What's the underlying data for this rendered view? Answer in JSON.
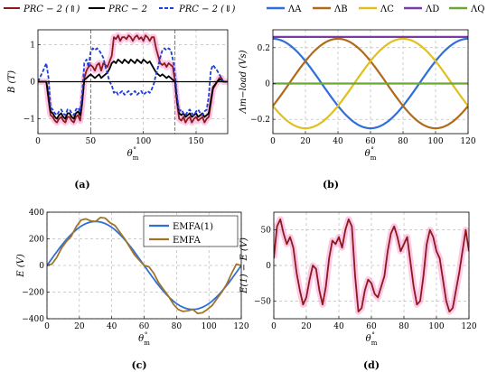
{
  "chart_data": [
    {
      "panel": "(a)",
      "type": "line",
      "xlabel": "θ°m",
      "ylabel": "B (T)",
      "xlim": [
        0,
        180
      ],
      "ylim": [
        -1.4,
        1.4
      ],
      "xticks": [
        0,
        50,
        100,
        150
      ],
      "yticks": [
        -1,
        0,
        1
      ],
      "vlines": [
        50,
        130
      ],
      "grid": "dashed",
      "legend": "top, outside",
      "colors": {
        "up": "#8b1a1a",
        "mid": "#000000",
        "down": "#1f3fd6",
        "fill": "#ff9ad5"
      },
      "series": [
        {
          "name": "PRC − 2 (⇑)",
          "style": "solid",
          "color": "#8b1a1a",
          "x": [
            0,
            5,
            8,
            10,
            12,
            14,
            16,
            18,
            20,
            22,
            24,
            26,
            28,
            30,
            32,
            34,
            36,
            38,
            40,
            42,
            44,
            46,
            48,
            50,
            52,
            54,
            56,
            58,
            60,
            62,
            64,
            66,
            68,
            70,
            72,
            74,
            76,
            78,
            80,
            82,
            84,
            86,
            88,
            90,
            92,
            94,
            96,
            98,
            100,
            102,
            104,
            106,
            108,
            110,
            112,
            114,
            116,
            118,
            120,
            122,
            124,
            126,
            128,
            130,
            132,
            134,
            136,
            138,
            140,
            142,
            144,
            146,
            148,
            150,
            152,
            154,
            156,
            158,
            160,
            162,
            164,
            166,
            170,
            172,
            174,
            176,
            180
          ],
          "y": [
            0,
            0,
            0,
            -0.5,
            -0.9,
            -0.95,
            -1.05,
            -1.1,
            -1.0,
            -0.95,
            -1.05,
            -1.1,
            -0.95,
            -0.95,
            -1.05,
            -1.1,
            -0.95,
            -0.9,
            -1.05,
            -0.6,
            0.1,
            0.3,
            0.4,
            0.45,
            0.4,
            0.3,
            0.45,
            0.5,
            0.3,
            0.5,
            0.45,
            0.4,
            0.55,
            0.7,
            1.2,
            1.15,
            1.25,
            1.1,
            1.2,
            1.2,
            1.15,
            1.25,
            1.2,
            1.1,
            1.2,
            1.25,
            1.15,
            1.2,
            1.1,
            1.25,
            1.2,
            1.1,
            1.2,
            1.2,
            0.9,
            0.7,
            0.5,
            0.45,
            0.5,
            0.4,
            0.5,
            0.45,
            0.4,
            0,
            -0.6,
            -1.0,
            -1.05,
            -0.95,
            -1.1,
            -1.0,
            -0.95,
            -1.1,
            -1.0,
            -0.95,
            -1.05,
            -1.0,
            -0.95,
            -1.1,
            -1.0,
            -0.95,
            -0.6,
            -0.2,
            0,
            0.1,
            0.1,
            0,
            0
          ]
        },
        {
          "name": "PRC − 2",
          "style": "solid",
          "color": "#000000",
          "x": [
            0,
            5,
            8,
            10,
            12,
            14,
            16,
            18,
            20,
            22,
            24,
            26,
            28,
            30,
            32,
            34,
            36,
            38,
            40,
            42,
            44,
            46,
            48,
            50,
            52,
            54,
            56,
            58,
            60,
            62,
            64,
            66,
            68,
            70,
            72,
            74,
            76,
            78,
            80,
            82,
            84,
            86,
            88,
            90,
            92,
            94,
            96,
            98,
            100,
            102,
            104,
            106,
            108,
            110,
            112,
            114,
            116,
            118,
            120,
            122,
            124,
            126,
            128,
            130,
            132,
            134,
            136,
            138,
            140,
            142,
            144,
            146,
            148,
            150,
            152,
            154,
            156,
            158,
            160,
            162,
            164,
            166,
            170,
            172,
            174,
            176,
            180
          ],
          "y": [
            0,
            0,
            0,
            -0.4,
            -0.8,
            -0.85,
            -0.95,
            -1.0,
            -0.9,
            -0.85,
            -0.95,
            -1.0,
            -0.85,
            -0.85,
            -0.95,
            -1.0,
            -0.85,
            -0.8,
            -0.9,
            -0.5,
            0.05,
            0.1,
            0.15,
            0.2,
            0.15,
            0.1,
            0.15,
            0.2,
            0.1,
            0.15,
            0.2,
            0.25,
            0.35,
            0.5,
            0.55,
            0.5,
            0.6,
            0.55,
            0.5,
            0.6,
            0.55,
            0.5,
            0.6,
            0.55,
            0.5,
            0.6,
            0.55,
            0.5,
            0.6,
            0.55,
            0.5,
            0.55,
            0.45,
            0.35,
            0.25,
            0.2,
            0.15,
            0.2,
            0.15,
            0.1,
            0.15,
            0.1,
            0.05,
            0,
            -0.5,
            -0.85,
            -0.9,
            -0.85,
            -0.95,
            -0.9,
            -0.85,
            -0.95,
            -0.9,
            -0.85,
            -0.95,
            -0.9,
            -0.85,
            -0.95,
            -0.9,
            -0.85,
            -0.5,
            -0.15,
            0,
            0.05,
            0.05,
            0,
            0
          ]
        },
        {
          "name": "PRC − 2 (⇓)",
          "style": "dashed",
          "color": "#1f3fd6",
          "x": [
            0,
            5,
            8,
            10,
            12,
            14,
            16,
            18,
            20,
            22,
            24,
            26,
            28,
            30,
            32,
            34,
            36,
            38,
            40,
            42,
            44,
            46,
            48,
            50,
            52,
            54,
            56,
            58,
            60,
            62,
            64,
            66,
            68,
            70,
            72,
            74,
            76,
            78,
            80,
            82,
            84,
            86,
            88,
            90,
            92,
            94,
            96,
            98,
            100,
            102,
            104,
            106,
            108,
            110,
            112,
            114,
            116,
            118,
            120,
            122,
            124,
            126,
            128,
            130,
            132,
            134,
            136,
            138,
            140,
            142,
            144,
            146,
            148,
            150,
            152,
            154,
            156,
            158,
            160,
            162,
            164,
            166,
            170,
            172,
            174,
            176,
            180
          ],
          "y": [
            0,
            0.3,
            0.5,
            0.1,
            -0.7,
            -0.75,
            -0.85,
            -0.9,
            -0.8,
            -0.75,
            -0.85,
            -0.9,
            -0.75,
            -0.75,
            -0.85,
            -0.9,
            -0.75,
            -0.7,
            -0.8,
            -0.3,
            0.5,
            0.6,
            0.4,
            0.8,
            0.9,
            0.85,
            0.9,
            0.85,
            0.75,
            0.65,
            0.4,
            0.2,
            0.0,
            -0.1,
            -0.3,
            -0.25,
            -0.35,
            -0.3,
            -0.25,
            -0.35,
            -0.3,
            -0.25,
            -0.35,
            -0.3,
            -0.25,
            -0.35,
            -0.3,
            -0.25,
            -0.35,
            -0.3,
            -0.25,
            -0.3,
            -0.2,
            -0.05,
            0.2,
            0.4,
            0.65,
            0.85,
            0.9,
            0.85,
            0.9,
            0.85,
            0.6,
            0.2,
            -0.4,
            -0.8,
            -0.75,
            -0.85,
            -0.9,
            -0.8,
            -0.75,
            -0.85,
            -0.9,
            -0.8,
            -0.75,
            -0.85,
            -0.9,
            -0.8,
            -0.75,
            -0.4,
            0.3,
            0.45,
            0.3,
            0.2,
            0.1,
            0,
            0
          ]
        }
      ]
    },
    {
      "panel": "(b)",
      "type": "line",
      "xlabel": "θ°m",
      "ylabel": "Λm−load (Vs)",
      "xlim": [
        0,
        120
      ],
      "ylim": [
        -0.28,
        0.3
      ],
      "xticks": [
        0,
        20,
        40,
        60,
        80,
        100,
        120
      ],
      "yticks": [
        -0.2,
        0,
        0.2
      ],
      "grid": "dashed",
      "legend": "top, outside",
      "series": [
        {
          "name": "ΛA",
          "color": "#2f6fd6",
          "amplitude": 0.25,
          "phase_deg": 90
        },
        {
          "name": "ΛB",
          "color": "#b06a1a",
          "amplitude": 0.25,
          "phase_deg": -30
        },
        {
          "name": "ΛC",
          "color": "#e0c020",
          "amplitude": 0.25,
          "phase_deg": 210
        },
        {
          "name": "ΛD",
          "color": "#7b3aa6",
          "constant": 0.26
        },
        {
          "name": "ΛQ",
          "color": "#6aa832",
          "constant": 0.0
        }
      ]
    },
    {
      "panel": "(c)",
      "type": "line",
      "xlabel": "θ°m",
      "ylabel": "E (V)",
      "xlim": [
        0,
        120
      ],
      "ylim": [
        -400,
        400
      ],
      "xticks": [
        0,
        20,
        40,
        60,
        80,
        100,
        120
      ],
      "yticks": [
        -400,
        -200,
        0,
        200,
        400
      ],
      "grid": "dashed",
      "legend": "top-right",
      "series": [
        {
          "name": "EMFA(1)",
          "color": "#2f6fd6",
          "amplitude": 330
        },
        {
          "name": "EMFA",
          "color": "#a0742a",
          "x": [
            0,
            3,
            6,
            9,
            12,
            15,
            18,
            21,
            24,
            27,
            30,
            33,
            36,
            39,
            42,
            45,
            48,
            51,
            54,
            57,
            60,
            63,
            66,
            69,
            72,
            75,
            78,
            81,
            84,
            87,
            90,
            93,
            96,
            99,
            102,
            105,
            108,
            111,
            114,
            117,
            120
          ],
          "y": [
            0,
            10,
            60,
            130,
            180,
            220,
            290,
            340,
            350,
            335,
            330,
            360,
            355,
            320,
            300,
            250,
            200,
            140,
            80,
            40,
            0,
            -10,
            -60,
            -130,
            -180,
            -230,
            -290,
            -330,
            -345,
            -340,
            -330,
            -360,
            -355,
            -330,
            -300,
            -250,
            -200,
            -140,
            -60,
            10,
            0
          ]
        }
      ]
    },
    {
      "panel": "(d)",
      "type": "line",
      "xlabel": "θ°m",
      "ylabel": "E(1) − E (V)",
      "xlim": [
        0,
        120
      ],
      "ylim": [
        -75,
        75
      ],
      "xticks": [
        0,
        20,
        40,
        60,
        80,
        100,
        120
      ],
      "yticks": [
        -50,
        0,
        50
      ],
      "grid": "dashed",
      "series": [
        {
          "name": "E(1) − E",
          "color": "#8b1a1a",
          "x": [
            0,
            2,
            4,
            6,
            8,
            10,
            12,
            14,
            16,
            18,
            20,
            22,
            24,
            26,
            28,
            30,
            32,
            34,
            36,
            38,
            40,
            42,
            44,
            46,
            48,
            50,
            52,
            54,
            56,
            58,
            60,
            62,
            64,
            66,
            68,
            70,
            72,
            74,
            76,
            78,
            80,
            82,
            84,
            86,
            88,
            90,
            92,
            94,
            96,
            98,
            100,
            102,
            104,
            106,
            108,
            110,
            112,
            114,
            116,
            118,
            120
          ],
          "y": [
            10,
            55,
            65,
            45,
            30,
            40,
            25,
            -10,
            -35,
            -55,
            -45,
            -20,
            0,
            -5,
            -35,
            -55,
            -30,
            10,
            35,
            30,
            40,
            25,
            50,
            65,
            55,
            -15,
            -65,
            -60,
            -35,
            -20,
            -25,
            -40,
            -45,
            -30,
            -15,
            20,
            45,
            55,
            40,
            20,
            30,
            40,
            5,
            -30,
            -55,
            -50,
            -15,
            30,
            50,
            40,
            20,
            10,
            -20,
            -50,
            -65,
            -60,
            -35,
            -10,
            20,
            50,
            20
          ]
        }
      ]
    }
  ]
}
